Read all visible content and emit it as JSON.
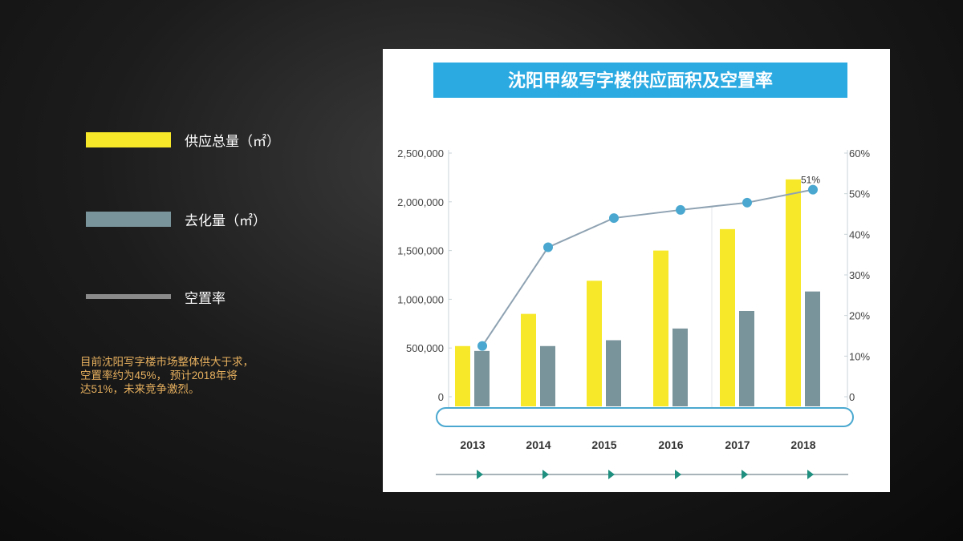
{
  "legend": {
    "items": [
      {
        "label": "供应总量（㎡）",
        "color": "#f7e82a"
      },
      {
        "label": "去化量（㎡）",
        "color": "#7a949c"
      },
      {
        "label": "空置率",
        "color": "#8a8a8a"
      }
    ]
  },
  "note": {
    "lines": [
      "目前沈阳写字楼市场整体供大于求，",
      "空置率约为45%， 预计2018年将",
      "达51%，未来竞争激烈。"
    ]
  },
  "colors": {
    "title_bar": "#2baae2",
    "supply": "#f7e82a",
    "absorbed": "#7a949c",
    "vacancy_line": "#8ea2b2",
    "vacancy_point": "#4aa8d0",
    "accent_arrow": "#1f8f7f"
  },
  "chart_data": {
    "type": "bar",
    "title": "沈阳甲级写字楼供应面积及空置率",
    "categories": [
      "2013",
      "2014",
      "2015",
      "2016",
      "2017",
      "2018"
    ],
    "series": [
      {
        "name": "供应总量（㎡）",
        "type": "bar",
        "axis": "left",
        "values": [
          520000,
          850000,
          1190000,
          1500000,
          1720000,
          2230000
        ]
      },
      {
        "name": "去化量（㎡）",
        "type": "bar",
        "axis": "left",
        "values": [
          470000,
          520000,
          580000,
          700000,
          880000,
          1080000
        ]
      },
      {
        "name": "空置率",
        "type": "line",
        "axis": "right",
        "values": [
          12.5,
          36.8,
          44,
          46,
          47.8,
          51
        ]
      }
    ],
    "data_labels": [
      {
        "category": "2018",
        "series": "空置率",
        "text": "51%"
      }
    ],
    "y_left": {
      "ylim": [
        0,
        2500000
      ],
      "ticks": [
        "0",
        "500,000",
        "1,000,000",
        "1,500,000",
        "2,000,000",
        "2,500,000"
      ]
    },
    "y_right": {
      "ylim": [
        0,
        60
      ],
      "ticks": [
        "0",
        "10%",
        "20%",
        "30%",
        "40%",
        "50%",
        "60%"
      ]
    },
    "grid": false
  }
}
